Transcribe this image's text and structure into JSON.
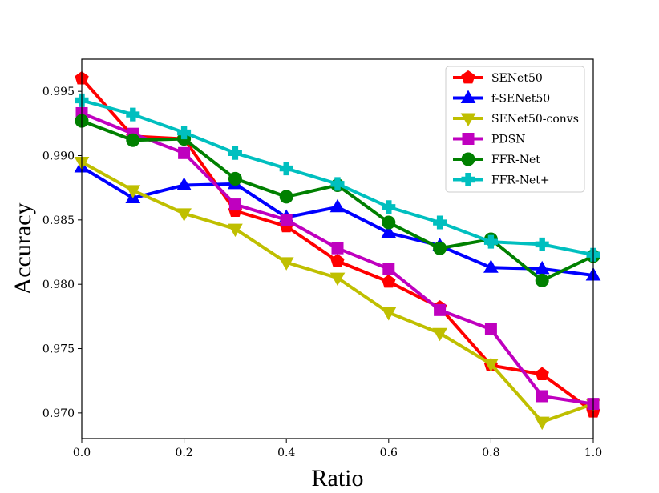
{
  "chart_data": {
    "type": "line",
    "title": "",
    "xlabel": "Ratio",
    "ylabel": "Accuracy",
    "xlim": [
      0.0,
      1.0
    ],
    "ylim": [
      0.968,
      0.9975
    ],
    "x": [
      0.0,
      0.1,
      0.2,
      0.3,
      0.4,
      0.5,
      0.6,
      0.7,
      0.8,
      0.9,
      1.0
    ],
    "xticks": [
      0.0,
      0.2,
      0.4,
      0.6,
      0.8,
      1.0
    ],
    "xtick_labels": [
      "0.0",
      "0.2",
      "0.4",
      "0.6",
      "0.8",
      "1.0"
    ],
    "yticks": [
      0.97,
      0.975,
      0.98,
      0.985,
      0.99,
      0.995
    ],
    "ytick_labels": [
      "0.970",
      "0.975",
      "0.980",
      "0.985",
      "0.990",
      "0.995"
    ],
    "grid": false,
    "legend_position": "top-right",
    "series": [
      {
        "name": "SENet50",
        "color": "#ff0000",
        "marker": "pentagon",
        "values": [
          0.996,
          0.9915,
          0.9913,
          0.9857,
          0.9845,
          0.9818,
          0.9802,
          0.9782,
          0.9737,
          0.973,
          0.9701
        ]
      },
      {
        "name": "f-SENet50",
        "color": "#0000ff",
        "marker": "triangle-up",
        "values": [
          0.9891,
          0.9867,
          0.9877,
          0.9878,
          0.9852,
          0.986,
          0.984,
          0.983,
          0.9813,
          0.9812,
          0.9807
        ]
      },
      {
        "name": "SENet50-convs",
        "color": "#bfbf00",
        "marker": "triangle-down",
        "values": [
          0.9895,
          0.9873,
          0.9855,
          0.9843,
          0.9817,
          0.9805,
          0.9778,
          0.9762,
          0.9738,
          0.9693,
          0.9707
        ]
      },
      {
        "name": "PDSN",
        "color": "#bf00bf",
        "marker": "square",
        "values": [
          0.9933,
          0.9917,
          0.9902,
          0.9862,
          0.985,
          0.9828,
          0.9812,
          0.978,
          0.9765,
          0.9713,
          0.9707
        ]
      },
      {
        "name": "FFR-Net",
        "color": "#008000",
        "marker": "circle",
        "values": [
          0.9927,
          0.9912,
          0.9913,
          0.9882,
          0.9868,
          0.9877,
          0.9848,
          0.9828,
          0.9835,
          0.9803,
          0.9822
        ]
      },
      {
        "name": "FFR-Net+",
        "color": "#00bfbf",
        "marker": "plus",
        "values": [
          0.9943,
          0.9932,
          0.9918,
          0.9902,
          0.989,
          0.9878,
          0.986,
          0.9848,
          0.9833,
          0.9831,
          0.9823
        ]
      }
    ]
  }
}
